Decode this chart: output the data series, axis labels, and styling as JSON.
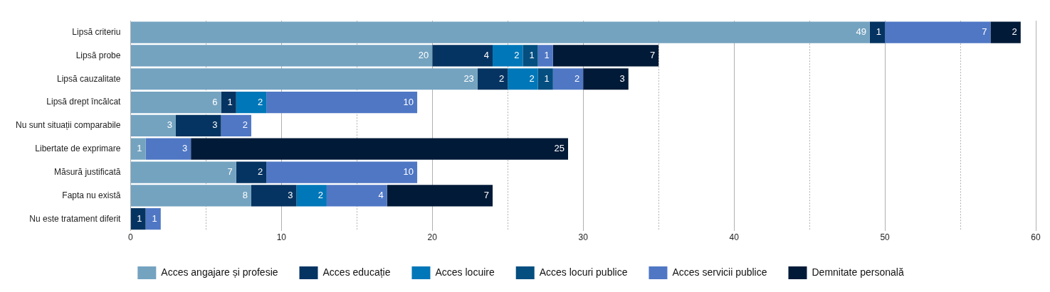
{
  "chart_data": {
    "type": "bar",
    "orientation": "horizontal",
    "stacked": true,
    "data_labels": true,
    "grid": "x",
    "legend": "bottom",
    "categories": [
      "Lipsă criteriu",
      "Lipsă probe",
      "Lipsă cauzalitate",
      "Lipsă drept încălcat",
      "Nu sunt situații comparabile",
      "Libertate de exprimare",
      "Măsură justificată",
      "Fapta nu există",
      "Nu este tratament diferit"
    ],
    "xlim": [
      0,
      60
    ],
    "xticks": [
      0,
      {
        "value": 5,
        "label": null
      },
      10,
      {
        "value": 15,
        "label": null
      },
      20,
      {
        "value": 25,
        "label": null
      },
      30,
      {
        "value": 35,
        "label": null
      },
      40,
      {
        "value": 45,
        "label": null
      },
      50,
      {
        "value": 55,
        "label": null
      },
      60
    ],
    "series": [
      {
        "name": "Acces angajare și profesie",
        "color": "#74a3c0",
        "values": [
          49,
          20,
          23,
          6,
          3,
          1,
          7,
          8,
          null
        ]
      },
      {
        "name": "Acces educație",
        "color": "#063462",
        "values": [
          1,
          4,
          2,
          1,
          3,
          null,
          2,
          3,
          1
        ]
      },
      {
        "name": "Acces locuire",
        "color": "#0077b8",
        "values": [
          null,
          2,
          2,
          2,
          null,
          null,
          null,
          2,
          null
        ]
      },
      {
        "name": "Acces locuri publice",
        "color": "#044e80",
        "values": [
          null,
          1,
          1,
          null,
          null,
          null,
          null,
          null,
          null
        ]
      },
      {
        "name": "Acces servicii publice",
        "color": "#4f77c4",
        "values": [
          7,
          1,
          2,
          10,
          2,
          3,
          10,
          4,
          1
        ]
      },
      {
        "name": "Demnitate personală",
        "color": "#011a38",
        "values": [
          2,
          7,
          3,
          null,
          null,
          25,
          null,
          7,
          null
        ]
      }
    ]
  }
}
